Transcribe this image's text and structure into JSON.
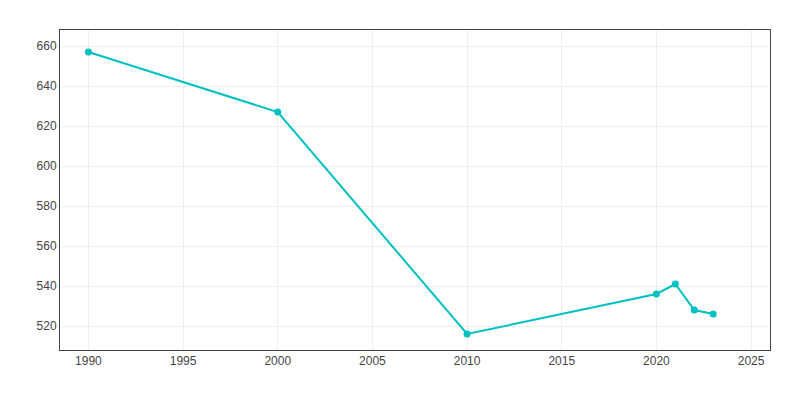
{
  "chart_data": {
    "type": "line",
    "x": [
      1990,
      2000,
      2010,
      2020,
      2021,
      2022,
      2023
    ],
    "values": [
      657,
      627,
      516,
      536,
      541,
      528,
      526
    ],
    "color": "#00C0C0",
    "marker": "circle",
    "xlim": [
      1988.5,
      2026
    ],
    "ylim": [
      508,
      668
    ],
    "xticks": [
      1990,
      1995,
      2000,
      2005,
      2010,
      2015,
      2020,
      2025
    ],
    "yticks": [
      520,
      540,
      560,
      580,
      600,
      620,
      640,
      660
    ],
    "grid": true
  }
}
